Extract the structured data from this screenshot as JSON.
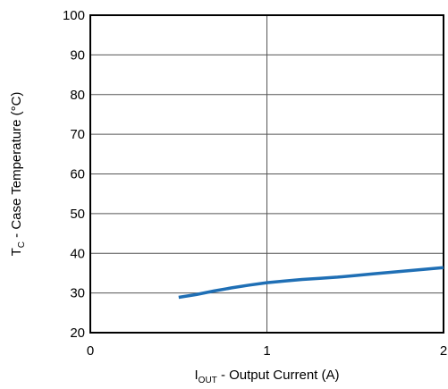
{
  "chart_data": {
    "type": "line",
    "title": "",
    "xlabel": {
      "main": "I",
      "sub": "OUT",
      "rest": " - Output Current (A)"
    },
    "ylabel": {
      "main": "T",
      "sub": "C",
      "rest": " - Case Temperature (°C)"
    },
    "xlim": [
      0,
      2
    ],
    "ylim": [
      20,
      100
    ],
    "x_ticks": [
      "0",
      "1",
      "2"
    ],
    "y_ticks": [
      "20",
      "30",
      "40",
      "50",
      "60",
      "70",
      "80",
      "90",
      "100"
    ],
    "grid": "on",
    "legend": "none",
    "series": [
      {
        "color": "#1f6fb5",
        "x": [
          0.5,
          0.6,
          0.7,
          0.8,
          0.9,
          1.0,
          1.1,
          1.2,
          1.3,
          1.4,
          1.5,
          1.6,
          1.7,
          1.8,
          1.9,
          2.0
        ],
        "y": [
          28.9,
          29.6,
          30.5,
          31.3,
          32.0,
          32.6,
          33.0,
          33.4,
          33.7,
          34.0,
          34.4,
          34.8,
          35.2,
          35.6,
          36.0,
          36.4
        ]
      }
    ]
  }
}
